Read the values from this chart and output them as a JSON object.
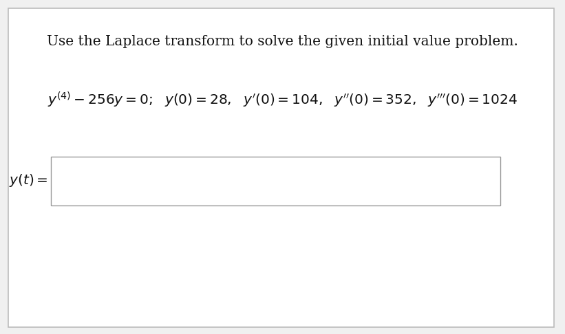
{
  "title_text": "Use the Laplace transform to solve the given initial value problem.",
  "bg_color": "#f0f0f0",
  "box_bg": "#ffffff",
  "border_color": "#bbbbbb",
  "text_color": "#111111",
  "title_fontsize": 14.5,
  "eq_fontsize": 14.5,
  "answer_fontsize": 14.5
}
